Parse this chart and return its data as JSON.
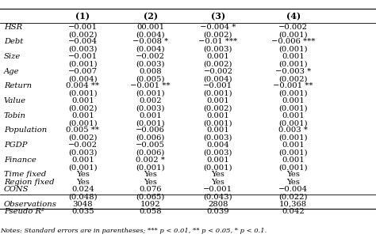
{
  "title": "",
  "columns": [
    "",
    "(1)",
    "(2)",
    "(3)",
    "(4)"
  ],
  "rows": [
    [
      "HSR",
      "−0.001",
      "00.001",
      "−0.004 *",
      "−0.002"
    ],
    [
      "",
      "(0.002)",
      "(0.004)",
      "(0.002)",
      "(0.001)"
    ],
    [
      "Debt",
      "−0.004",
      "−0.008 *",
      "−0.01 ***",
      "−0.006 ***"
    ],
    [
      "",
      "(0.003)",
      "(0.004)",
      "(0.003)",
      "(0.001)"
    ],
    [
      "Size",
      "−0.001",
      "−0.002",
      "0.001",
      "0.001"
    ],
    [
      "",
      "(0.001)",
      "(0.003)",
      "(0.002)",
      "(0.001)"
    ],
    [
      "Age",
      "−0.007",
      "0.008",
      "−0.002",
      "−0.003 *"
    ],
    [
      "",
      "(0.004)",
      "(0.005)",
      "(0.004)",
      "(0.002)"
    ],
    [
      "Return",
      "0.004 **",
      "−0.001 **",
      "−0.001",
      "−0.001 **"
    ],
    [
      "",
      "(0.001)",
      "(0.001)",
      "(0.001)",
      "(0.001)"
    ],
    [
      "Value",
      "0.001",
      "0.002",
      "0.001",
      "0.001"
    ],
    [
      "",
      "(0.002)",
      "(0.003)",
      "(0.002)",
      "(0.001)"
    ],
    [
      "Tobin",
      "0.001",
      "0.001",
      "0.001",
      "0.001"
    ],
    [
      "",
      "(0.001)",
      "(0.001)",
      "(0.001)",
      "(0.001)"
    ],
    [
      "Population",
      "0.005 **",
      "−0.006",
      "0.001",
      "0.003 *"
    ],
    [
      "",
      "(0.002)",
      "(0.006)",
      "(0.003)",
      "(0.001)"
    ],
    [
      "PGDP",
      "−0.002",
      "−0.005",
      "0.004",
      "0.001"
    ],
    [
      "",
      "(0.003)",
      "(0.006)",
      "(0.003)",
      "(0.001)"
    ],
    [
      "Finance",
      "0.001",
      "0.002 *",
      "0.001",
      "0.001"
    ],
    [
      "",
      "(0.001)",
      "(0.001)",
      "(0.001)",
      "(0.001)"
    ],
    [
      "Time fixed",
      "Yes",
      "Yes",
      "Yes",
      "Yes"
    ],
    [
      "Region fixed",
      "Yes",
      "Yes",
      "Yes",
      "Yes"
    ],
    [
      "CONS",
      "0.024",
      "0.076",
      "−0.001",
      "−0.004"
    ],
    [
      "",
      "(0.048)",
      "(0.065)",
      "(0.043)",
      "(0.022)"
    ],
    [
      "Observations",
      "3048",
      "1092",
      "2808",
      "10,368"
    ],
    [
      "Pseudo R²",
      "0.035",
      "0.058",
      "0.039",
      "0.042"
    ]
  ],
  "note": "Notes: Standard errors are in parentheses; *** p < 0.01, ** p < 0.05, * p < 0.1.",
  "header_color": "#d9d9d9",
  "bg_color": "#ffffff",
  "font_size": 7.2,
  "header_font_size": 8.0
}
